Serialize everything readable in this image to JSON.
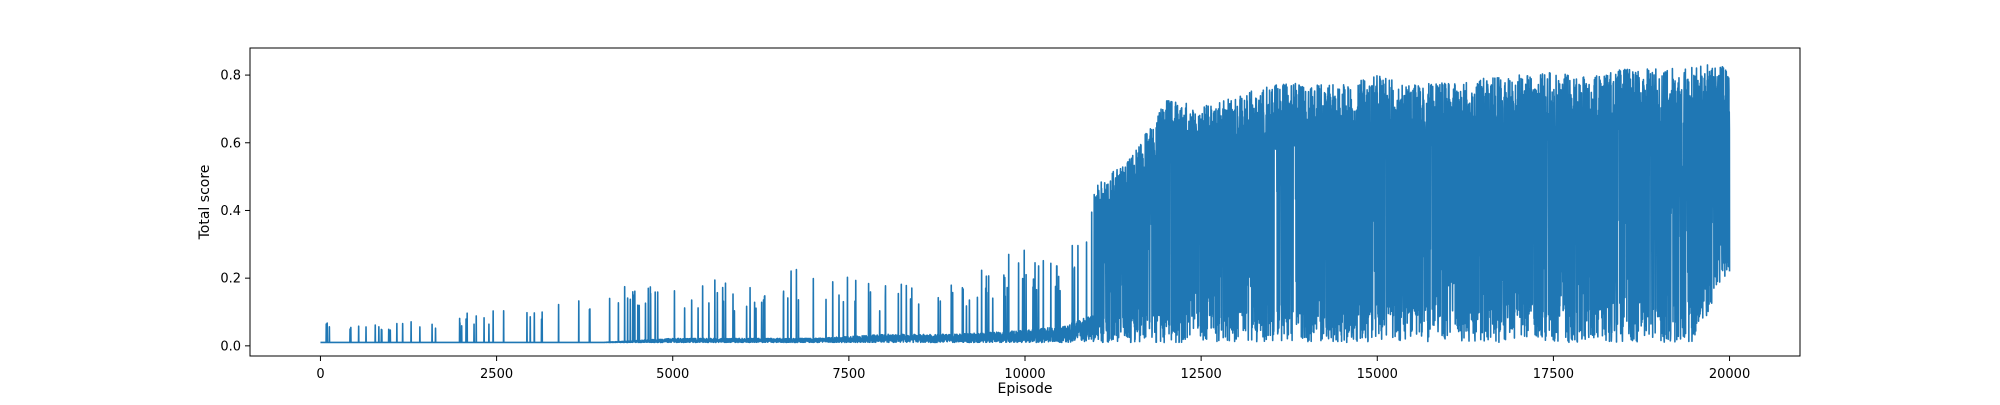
{
  "chart_data": {
    "type": "line",
    "title": "",
    "xlabel": "Episode",
    "ylabel": "Total score",
    "xlim": [
      -1000,
      21000
    ],
    "ylim": [
      -0.03,
      0.88
    ],
    "xticks": [
      0,
      2500,
      5000,
      7500,
      10000,
      12500,
      15000,
      17500,
      20000
    ],
    "xtick_labels": [
      "0",
      "2500",
      "5000",
      "7500",
      "10000",
      "12500",
      "15000",
      "17500",
      "20000"
    ],
    "yticks": [
      0.0,
      0.2,
      0.4,
      0.6,
      0.8
    ],
    "ytick_labels": [
      "0.0",
      "0.2",
      "0.4",
      "0.6",
      "0.8"
    ],
    "grid": false,
    "legend": "none",
    "line_color": "#1f77b4",
    "series": [
      {
        "episodes": [
          0,
          20000
        ],
        "envelope_x": [
          0,
          1000,
          2000,
          3000,
          4000,
          5000,
          6000,
          7000,
          8000,
          9000,
          10000,
          10500,
          11000,
          11500,
          12000,
          12500,
          13000,
          13500,
          14000,
          14500,
          15000,
          15500,
          16000,
          16500,
          17000,
          17500,
          18000,
          18500,
          19000,
          19500,
          20000
        ],
        "envelope_max": [
          0.08,
          0.08,
          0.1,
          0.13,
          0.17,
          0.22,
          0.18,
          0.25,
          0.19,
          0.18,
          0.3,
          0.24,
          0.47,
          0.56,
          0.73,
          0.71,
          0.74,
          0.77,
          0.78,
          0.77,
          0.8,
          0.77,
          0.78,
          0.79,
          0.8,
          0.81,
          0.8,
          0.82,
          0.82,
          0.83,
          0.83
        ],
        "envelope_min": [
          0.01,
          0.01,
          0.01,
          0.01,
          0.01,
          0.01,
          0.01,
          0.01,
          0.01,
          0.01,
          0.01,
          0.01,
          0.01,
          0.01,
          0.01,
          0.01,
          0.01,
          0.01,
          0.01,
          0.01,
          0.01,
          0.01,
          0.01,
          0.01,
          0.01,
          0.01,
          0.01,
          0.01,
          0.01,
          0.01,
          0.22
        ],
        "baseline": [
          0.01,
          0.01,
          0.01,
          0.01,
          0.01,
          0.02,
          0.02,
          0.02,
          0.03,
          0.03,
          0.04,
          0.05,
          0.08,
          0.15,
          0.35,
          0.45,
          0.5,
          0.55,
          0.55,
          0.6,
          0.6,
          0.6,
          0.6,
          0.6,
          0.6,
          0.6,
          0.62,
          0.62,
          0.62,
          0.62,
          0.62
        ]
      }
    ]
  }
}
